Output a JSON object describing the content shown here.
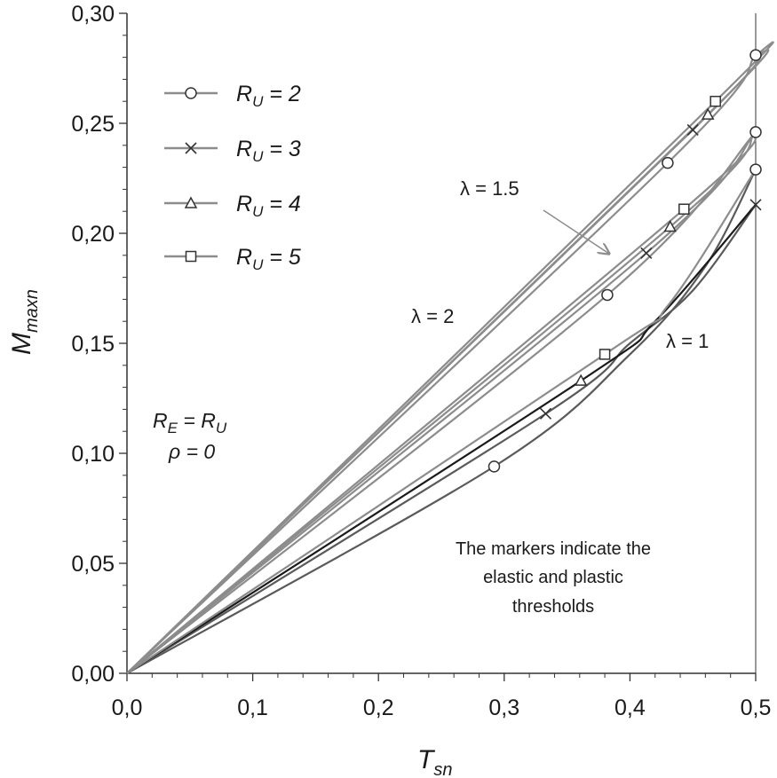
{
  "chart_data": {
    "type": "line",
    "xlabel": "T",
    "xlabel_sub": "sn",
    "ylabel": "M",
    "ylabel_sub": "maxn",
    "xlim": [
      0.0,
      0.5
    ],
    "ylim": [
      0.0,
      0.3
    ],
    "x_ticks": [
      "0,0",
      "0,1",
      "0,2",
      "0,3",
      "0,4",
      "0,5"
    ],
    "y_ticks": [
      "0,00",
      "0,05",
      "0,10",
      "0,15",
      "0,20",
      "0,25",
      "0,30"
    ],
    "grid": false,
    "legend": {
      "placement": "top-left",
      "entries": [
        {
          "label": "R",
          "sub": "U",
          "value": " = 2",
          "marker": "circle"
        },
        {
          "label": "R",
          "sub": "U",
          "value": " = 3",
          "marker": "cross"
        },
        {
          "label": "R",
          "sub": "U",
          "value": " = 4",
          "marker": "triangle"
        },
        {
          "label": "R",
          "sub": "U",
          "value": " = 5",
          "marker": "square"
        }
      ]
    },
    "annotations": {
      "lambda2": "λ = 2",
      "lambda15": "λ = 1.5",
      "lambda1": "λ = 1",
      "re_ru": {
        "a": "R",
        "a_sub": "E",
        "eq": " = ",
        "b": "R",
        "b_sub": "U"
      },
      "rho": "ρ = 0",
      "note": [
        "The markers indicate the",
        "elastic and plastic",
        "thresholds"
      ]
    },
    "colors": {
      "line_light": "#8c8c8c",
      "line_mid": "#5a5a5a",
      "line_dark": "#1a1a1a",
      "axis": "#333333"
    },
    "series": [
      {
        "group": "lambda2",
        "ru": 2,
        "color": "#8c8c8c",
        "points": [
          [
            0,
            0
          ],
          [
            0.43,
            0.232
          ],
          [
            0.5,
            0.281
          ]
        ],
        "markers": [
          [
            0.43,
            0.232,
            "circle"
          ],
          [
            0.5,
            0.281,
            "circle"
          ]
        ]
      },
      {
        "group": "lambda2",
        "ru": 3,
        "color": "#8c8c8c",
        "points": [
          [
            0,
            0
          ],
          [
            0.45,
            0.247
          ],
          [
            0.5,
            0.281
          ]
        ],
        "markers": [
          [
            0.45,
            0.247,
            "cross"
          ]
        ]
      },
      {
        "group": "lambda2",
        "ru": 4,
        "color": "#8c8c8c",
        "points": [
          [
            0,
            0
          ],
          [
            0.462,
            0.254
          ],
          [
            0.5,
            0.281
          ]
        ],
        "markers": [
          [
            0.462,
            0.254,
            "triangle"
          ]
        ]
      },
      {
        "group": "lambda2",
        "ru": 5,
        "color": "#8c8c8c",
        "points": [
          [
            0,
            0
          ],
          [
            0.468,
            0.26
          ],
          [
            0.5,
            0.281
          ]
        ],
        "markers": [
          [
            0.468,
            0.26,
            "square"
          ]
        ]
      },
      {
        "group": "lambda15",
        "ru": 2,
        "color": "#8c8c8c",
        "points": [
          [
            0,
            0
          ],
          [
            0.382,
            0.172
          ],
          [
            0.5,
            0.246
          ]
        ],
        "markers": [
          [
            0.382,
            0.172,
            "circle"
          ],
          [
            0.5,
            0.246,
            "circle"
          ]
        ]
      },
      {
        "group": "lambda15",
        "ru": 3,
        "color": "#8c8c8c",
        "points": [
          [
            0,
            0
          ],
          [
            0.413,
            0.191
          ],
          [
            0.5,
            0.246
          ]
        ],
        "markers": [
          [
            0.413,
            0.191,
            "cross"
          ]
        ]
      },
      {
        "group": "lambda15",
        "ru": 4,
        "color": "#8c8c8c",
        "points": [
          [
            0,
            0
          ],
          [
            0.432,
            0.203
          ],
          [
            0.5,
            0.246
          ]
        ],
        "markers": [
          [
            0.432,
            0.203,
            "triangle"
          ]
        ]
      },
      {
        "group": "lambda15",
        "ru": 5,
        "color": "#8c8c8c",
        "points": [
          [
            0,
            0
          ],
          [
            0.443,
            0.211
          ],
          [
            0.5,
            0.246
          ]
        ],
        "markers": [
          [
            0.443,
            0.211,
            "square"
          ]
        ]
      },
      {
        "group": "lambda1",
        "ru": 2,
        "color": "#5a5a5a",
        "points": [
          [
            0,
            0
          ],
          [
            0.292,
            0.094
          ],
          [
            0.4,
            0.145
          ],
          [
            0.46,
            0.185
          ],
          [
            0.5,
            0.229
          ]
        ],
        "markers": [
          [
            0.292,
            0.094,
            "circle"
          ],
          [
            0.5,
            0.229,
            "circle"
          ]
        ]
      },
      {
        "group": "lambda1",
        "ru": 3,
        "color": "#5a5a5a",
        "points": [
          [
            0,
            0
          ],
          [
            0.333,
            0.118
          ],
          [
            0.4,
            0.15
          ],
          [
            0.45,
            0.174
          ],
          [
            0.5,
            0.213
          ]
        ],
        "markers": [
          [
            0.333,
            0.118,
            "cross"
          ],
          [
            0.5,
            0.213,
            "cross"
          ]
        ]
      },
      {
        "group": "lambda1",
        "ru": 4,
        "color": "#1a1a1a",
        "points": [
          [
            0,
            0
          ],
          [
            0.361,
            0.133
          ],
          [
            0.42,
            0.16
          ],
          [
            0.5,
            0.213
          ]
        ],
        "markers": [
          [
            0.361,
            0.133,
            "triangle"
          ]
        ]
      },
      {
        "group": "lambda1",
        "ru": 5,
        "color": "#8c8c8c",
        "points": [
          [
            0,
            0
          ],
          [
            0.38,
            0.145
          ],
          [
            0.43,
            0.167
          ],
          [
            0.5,
            0.229
          ]
        ],
        "markers": [
          [
            0.38,
            0.145,
            "square"
          ]
        ]
      }
    ]
  }
}
